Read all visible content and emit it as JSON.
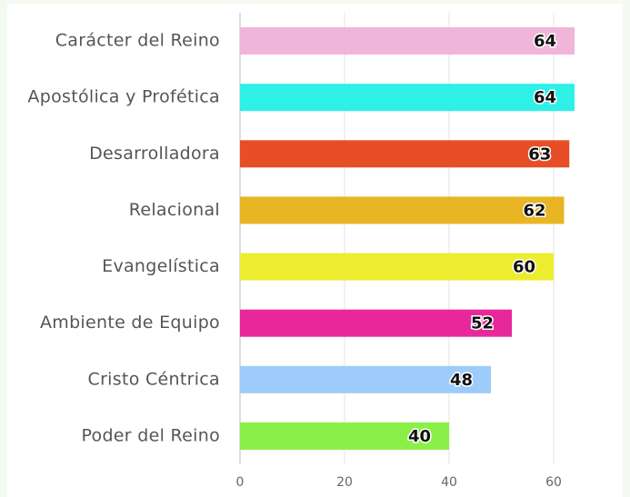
{
  "chart_data": {
    "type": "barh",
    "categories": [
      "Carácter del Reino",
      "Apostólica y Profética",
      "Desarrolladora",
      "Relacional",
      "Evangelística",
      "Ambiente de Equipo",
      "Cristo Céntrica",
      "Poder del Reino"
    ],
    "values": [
      64,
      64,
      63,
      62,
      60,
      52,
      48,
      40
    ],
    "colors": [
      "#f0b5d8",
      "#2ef0e6",
      "#e84e26",
      "#e8b623",
      "#eded30",
      "#e8289a",
      "#9dcbfa",
      "#8af048"
    ],
    "xlim": [
      0,
      70
    ],
    "xticks": [
      0,
      20,
      40,
      60
    ],
    "grid": true
  }
}
